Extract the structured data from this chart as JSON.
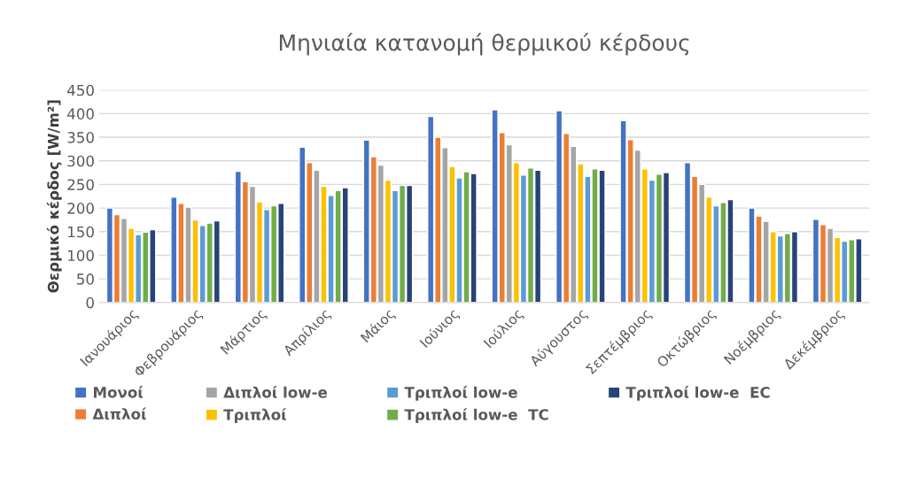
{
  "chart_data": {
    "type": "bar",
    "title": "Μηνιαία κατανομή θερμικού κέρδους",
    "ylabel": "Θερμικό κέρδος [W/m²]",
    "categories": [
      "Ιανουάριος",
      "Φεβρουάριος",
      "Μάρτιος",
      "Απρίλιος",
      "Μάιος",
      "Ιούνιος",
      "Ιούλιος",
      "Αύγουστος",
      "Σεπτέμβριος",
      "Οκτώβριος",
      "Νοέμβριος",
      "Δεκέμβριος"
    ],
    "series": [
      {
        "name": "Μονοί",
        "color": "#4472c4",
        "values": [
          200,
          223,
          278,
          329,
          344,
          394,
          408,
          406,
          385,
          296,
          200,
          176
        ]
      },
      {
        "name": "Διπλοί",
        "color": "#ed7d31",
        "values": [
          186,
          210,
          256,
          296,
          309,
          350,
          360,
          358,
          345,
          267,
          183,
          165
        ]
      },
      {
        "name": "Διπλοί low-e",
        "color": "#a5a5a5",
        "values": [
          178,
          202,
          246,
          280,
          291,
          328,
          334,
          331,
          323,
          250,
          172,
          157
        ]
      },
      {
        "name": "Τριπλοί",
        "color": "#ffc000",
        "values": [
          157,
          175,
          213,
          246,
          259,
          288,
          296,
          294,
          283,
          223,
          150,
          138
        ]
      },
      {
        "name": "Τριπλοί low-e",
        "color": "#5b9bd5",
        "values": [
          144,
          163,
          197,
          227,
          237,
          264,
          270,
          267,
          259,
          205,
          141,
          130
        ]
      },
      {
        "name": "Τριπλοί low-e  TC",
        "color": "#70ad47",
        "values": [
          149,
          168,
          205,
          237,
          248,
          277,
          285,
          283,
          272,
          212,
          146,
          133
        ]
      },
      {
        "name": "Τριπλοί low-e  EC",
        "color": "#264478",
        "values": [
          154,
          173,
          210,
          243,
          248,
          273,
          280,
          280,
          275,
          218,
          150,
          135
        ]
      }
    ],
    "ylim": [
      0,
      450
    ],
    "yticks": [
      0,
      50,
      100,
      150,
      200,
      250,
      300,
      350,
      400,
      450
    ],
    "grid": "y",
    "legend": "bottom"
  }
}
